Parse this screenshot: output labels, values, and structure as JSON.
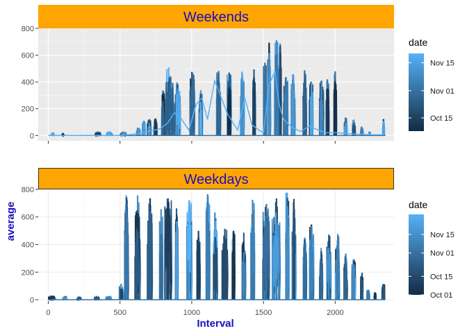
{
  "chart_data": [
    {
      "type": "line",
      "title": "Weekends",
      "xlabel": "",
      "ylabel": "",
      "xlim": [
        -70,
        2410
      ],
      "ylim": [
        -40,
        800
      ],
      "x_ticks": [
        0,
        500,
        1000,
        1500,
        2000
      ],
      "y_ticks": [
        0,
        200,
        400,
        600,
        800
      ],
      "y_tick_labels": [
        "0",
        "200",
        "400",
        "600",
        "800"
      ],
      "x_tick_labels_shown": false,
      "strip_fill": "#ffa500",
      "title_color": "#1a0dbf",
      "panel_background": "#ebebeb",
      "legend": {
        "title": "date",
        "position": "right",
        "ticks": [
          "Oct 15",
          "Nov 01",
          "Nov 15"
        ],
        "low_color": "#132b43",
        "high_color": "#56b1f7"
      },
      "bursts": [
        {
          "x0": 20,
          "x1": 40,
          "peak": 20
        },
        {
          "x0": 95,
          "x1": 110,
          "peak": 15
        },
        {
          "x0": 325,
          "x1": 365,
          "peak": 28
        },
        {
          "x0": 405,
          "x1": 445,
          "peak": 30
        },
        {
          "x0": 500,
          "x1": 545,
          "peak": 25
        },
        {
          "x0": 615,
          "x1": 640,
          "peak": 60
        },
        {
          "x0": 655,
          "x1": 675,
          "peak": 110
        },
        {
          "x0": 690,
          "x1": 715,
          "peak": 130
        },
        {
          "x0": 735,
          "x1": 760,
          "peak": 140
        },
        {
          "x0": 790,
          "x1": 810,
          "peak": 350
        },
        {
          "x0": 815,
          "x1": 875,
          "peak": 520
        },
        {
          "x0": 880,
          "x1": 920,
          "peak": 470
        },
        {
          "x0": 985,
          "x1": 1020,
          "peak": 530
        },
        {
          "x0": 1050,
          "x1": 1075,
          "peak": 360
        },
        {
          "x0": 1170,
          "x1": 1200,
          "peak": 500
        },
        {
          "x0": 1245,
          "x1": 1275,
          "peak": 510
        },
        {
          "x0": 1340,
          "x1": 1365,
          "peak": 500
        },
        {
          "x0": 1425,
          "x1": 1445,
          "peak": 520
        },
        {
          "x0": 1500,
          "x1": 1520,
          "peak": 550
        },
        {
          "x0": 1530,
          "x1": 1550,
          "peak": 770
        },
        {
          "x0": 1575,
          "x1": 1605,
          "peak": 770
        },
        {
          "x0": 1610,
          "x1": 1625,
          "peak": 760
        },
        {
          "x0": 1640,
          "x1": 1670,
          "peak": 480
        },
        {
          "x0": 1690,
          "x1": 1720,
          "peak": 470
        },
        {
          "x0": 1775,
          "x1": 1800,
          "peak": 500
        },
        {
          "x0": 1820,
          "x1": 1845,
          "peak": 440
        },
        {
          "x0": 1890,
          "x1": 1920,
          "peak": 440
        },
        {
          "x0": 1935,
          "x1": 1960,
          "peak": 470
        },
        {
          "x0": 1990,
          "x1": 2010,
          "peak": 480
        },
        {
          "x0": 2060,
          "x1": 2085,
          "peak": 140
        },
        {
          "x0": 2120,
          "x1": 2140,
          "peak": 130
        },
        {
          "x0": 2175,
          "x1": 2195,
          "peak": 70
        },
        {
          "x0": 2235,
          "x1": 2245,
          "peak": 30
        },
        {
          "x0": 2330,
          "x1": 2345,
          "peak": 125
        }
      ],
      "light_path": [
        [
          0,
          0
        ],
        [
          500,
          0
        ],
        [
          600,
          10
        ],
        [
          700,
          30
        ],
        [
          780,
          50
        ],
        [
          830,
          90
        ],
        [
          880,
          170
        ],
        [
          930,
          120
        ],
        [
          980,
          40
        ],
        [
          1030,
          230
        ],
        [
          1070,
          280
        ],
        [
          1110,
          120
        ],
        [
          1160,
          410
        ],
        [
          1210,
          270
        ],
        [
          1250,
          160
        ],
        [
          1320,
          40
        ],
        [
          1370,
          280
        ],
        [
          1420,
          80
        ],
        [
          1470,
          40
        ],
        [
          1500,
          20
        ],
        [
          1540,
          380
        ],
        [
          1580,
          480
        ],
        [
          1610,
          230
        ],
        [
          1640,
          120
        ],
        [
          1700,
          60
        ],
        [
          1760,
          30
        ],
        [
          1820,
          70
        ],
        [
          1880,
          40
        ],
        [
          1940,
          20
        ],
        [
          2000,
          20
        ],
        [
          2080,
          15
        ],
        [
          2150,
          10
        ],
        [
          2250,
          5
        ],
        [
          2340,
          5
        ]
      ]
    },
    {
      "type": "line",
      "title": "Weekdays",
      "xlabel": "Interval",
      "ylabel": "average",
      "xlim": [
        -70,
        2410
      ],
      "ylim": [
        -10,
        805
      ],
      "x_ticks": [
        0,
        500,
        1000,
        1500,
        2000
      ],
      "x_tick_labels": [
        "0",
        "500",
        "1000",
        "1500",
        "2000"
      ],
      "y_ticks": [
        0,
        200,
        400,
        600,
        800
      ],
      "y_tick_labels": [
        "0",
        "200",
        "400",
        "600",
        "800"
      ],
      "strip_fill": "#ffa500",
      "title_color": "#1a0dbf",
      "axis_label_color": "#1a0dbf",
      "panel_background": "#ffffff",
      "legend": {
        "title": "date",
        "position": "right",
        "ticks": [
          "Oct 01",
          "Oct 15",
          "Nov 01",
          "Nov 15"
        ],
        "low_color": "#132b43",
        "high_color": "#56b1f7"
      },
      "bursts": [
        {
          "x0": 0,
          "x1": 50,
          "peak": 30
        },
        {
          "x0": 100,
          "x1": 130,
          "peak": 25
        },
        {
          "x0": 200,
          "x1": 230,
          "peak": 20
        },
        {
          "x0": 320,
          "x1": 355,
          "peak": 25
        },
        {
          "x0": 400,
          "x1": 440,
          "peak": 30
        },
        {
          "x0": 495,
          "x1": 525,
          "peak": 120
        },
        {
          "x0": 530,
          "x1": 560,
          "peak": 775
        },
        {
          "x0": 600,
          "x1": 640,
          "peak": 770
        },
        {
          "x0": 690,
          "x1": 725,
          "peak": 770
        },
        {
          "x0": 775,
          "x1": 800,
          "peak": 690
        },
        {
          "x0": 810,
          "x1": 860,
          "peak": 765
        },
        {
          "x0": 885,
          "x1": 905,
          "peak": 700
        },
        {
          "x0": 965,
          "x1": 1000,
          "peak": 770
        },
        {
          "x0": 1035,
          "x1": 1060,
          "peak": 505
        },
        {
          "x0": 1100,
          "x1": 1125,
          "peak": 775
        },
        {
          "x0": 1150,
          "x1": 1180,
          "peak": 655
        },
        {
          "x0": 1210,
          "x1": 1250,
          "peak": 520
        },
        {
          "x0": 1280,
          "x1": 1300,
          "peak": 515
        },
        {
          "x0": 1350,
          "x1": 1375,
          "peak": 490
        },
        {
          "x0": 1410,
          "x1": 1440,
          "peak": 755
        },
        {
          "x0": 1495,
          "x1": 1540,
          "peak": 775
        },
        {
          "x0": 1560,
          "x1": 1615,
          "peak": 780
        },
        {
          "x0": 1655,
          "x1": 1680,
          "peak": 780
        },
        {
          "x0": 1700,
          "x1": 1725,
          "peak": 745
        },
        {
          "x0": 1775,
          "x1": 1800,
          "peak": 550
        },
        {
          "x0": 1820,
          "x1": 1850,
          "peak": 590
        },
        {
          "x0": 1890,
          "x1": 1915,
          "peak": 380
        },
        {
          "x0": 1940,
          "x1": 1970,
          "peak": 485
        },
        {
          "x0": 2000,
          "x1": 2030,
          "peak": 485
        },
        {
          "x0": 2060,
          "x1": 2085,
          "peak": 370
        },
        {
          "x0": 2115,
          "x1": 2140,
          "peak": 305
        },
        {
          "x0": 2175,
          "x1": 2195,
          "peak": 210
        },
        {
          "x0": 2220,
          "x1": 2240,
          "peak": 80
        },
        {
          "x0": 2270,
          "x1": 2285,
          "peak": 60
        },
        {
          "x0": 2325,
          "x1": 2345,
          "peak": 120
        }
      ]
    }
  ]
}
